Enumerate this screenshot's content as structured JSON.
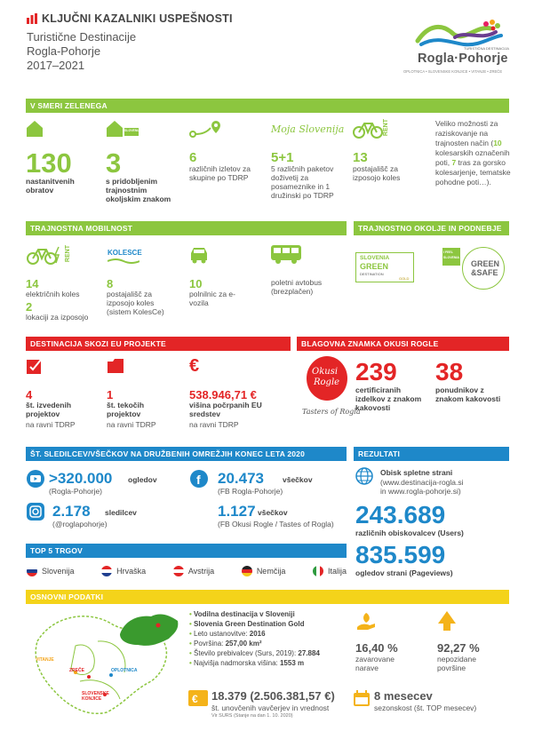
{
  "header": {
    "title": "KLJUČNI KAZALNIKI USPEŠNOSTI",
    "line1": "Turistične Destinacije",
    "line2": "Rogla-Pohorje",
    "line3": "2017–2021"
  },
  "logo": {
    "top": "TURISTIČNA DESTINACIJA",
    "name": "Rogla·Pohorje",
    "sub": "OPLOTNICA • SLOVENSKE KONJICE • VITANJE • ZREČE"
  },
  "green": {
    "bar": "V SMERI ZELENEGA",
    "moja": "Moja Slovenija",
    "rent": "RENT",
    "slovenia_green": "SLOVENIA GREEN",
    "s1_num": "130",
    "s1_label": "nastanitvenih obratov",
    "s2_num": "3",
    "s2_label": "s pridobljenim trajnostnim okoljskim znakom",
    "s3_num": "6",
    "s3_label": "različnih izletov za skupine po TDRP",
    "s4_num": "5+1",
    "s4_label": "5 različnih paketov doživetij za posameznike in 1 družinski po TDRP",
    "s5_num": "13",
    "s5_label": "postajališč za izposojo koles",
    "note_a": "Veliko možnosti za raziskovanje na trajnosten način (",
    "note_b": "10",
    "note_c": " kolesarskih označenih poti, ",
    "note_d": "7",
    "note_e": " tras za gorsko kolesarjenje, tematske pohodne poti…)."
  },
  "mobility": {
    "bar": "TRAJNOSTNA MOBILNOST",
    "rent": "RENT",
    "kolesce": "KOLESCE",
    "m1_num": "14",
    "m1_label": "električnih koles",
    "m1b_num": "2",
    "m1b_label": "lokaciji za izposojo",
    "m2_num": "8",
    "m2_label": "postajališč za izposojo koles (sistem KolesCe)",
    "m3_num": "10",
    "m3_label": "polnilnic za e-vozila",
    "m4_label": "poletni avtobus (brezplačen)"
  },
  "env": {
    "bar": "TRAJNOSTNO OKOLJE IN PODNEBJE",
    "badge1a": "SLOVENIA",
    "badge1b": "GREEN",
    "badge1c": "DESTINATION",
    "badge1d": "GOLD",
    "badge2a": "I FEEL",
    "badge2b": "SLOVENIA",
    "badge3a": "GREEN",
    "badge3b": "&SAFE"
  },
  "eu": {
    "bar": "DESTINACIJA SKOZI EU PROJEKTE",
    "e1_num": "4",
    "e1_label": "št. izvedenih projektov",
    "e1_sub": "na ravni TDRP",
    "e2_num": "1",
    "e2_label": "št. tekočih projektov",
    "e2_sub": "na ravni TDRP",
    "e3_num": "538.946,71 €",
    "e3_label": "višina počrpanih EU sredstev",
    "e3_sub": "na ravni TDRP"
  },
  "brand": {
    "bar": "BLAGOVNA ZNAMKA OKUSI ROGLE",
    "logo_a": "Okusi",
    "logo_b": "Rogle",
    "tasters": "Tasters of Rogla",
    "b1_num": "239",
    "b1_label": "certificiranih izdelkov z znakom kakovosti",
    "b2_num": "38",
    "b2_label": "ponudnikov z znakom kakovosti"
  },
  "social": {
    "bar": "ŠT. SLEDILCEV/VŠEČKOV NA DRUŽBENIH OMREŽJIH KONEC LETA 2020",
    "yt_num": ">320.000",
    "yt_unit": "ogledov",
    "yt_sub": "(Rogla-Pohorje)",
    "fb1_num": "20.473",
    "fb1_unit": "všečkov",
    "fb1_sub": "(FB Rogla-Pohorje)",
    "ig_num": "2.178",
    "ig_unit": "sledilcev",
    "ig_sub": "(@roglapohorje)",
    "fb2_num": "1.127",
    "fb2_unit": "všečkov",
    "fb2_sub": "(FB Okusi Rogle / Tastes of Rogla)"
  },
  "results": {
    "bar": "REZULTATI",
    "web_title": "Obisk spletne strani",
    "web_sub1": "(www.destinacija-rogla.si",
    "web_sub2": "in www.rogla-pohorje.si)",
    "users_num": "243.689",
    "users_label": "različnih obiskovalcev (Users)",
    "pv_num": "835.599",
    "pv_label": "ogledov strani (Pageviews)"
  },
  "markets": {
    "bar": "TOP 5 TRGOV",
    "items": [
      "Slovenija",
      "Hrvaška",
      "Avstrija",
      "Nemčija",
      "Italija"
    ]
  },
  "basic": {
    "bar": "OSNOVNI PODATKI",
    "places": {
      "vitanje": "VITANJE",
      "zrece": "ZREČE",
      "oplotnica": "OPLOTNICA",
      "konjice1": "SLOVENSKE",
      "konjice2": "KONJICE"
    },
    "list": [
      {
        "a": "Vodilna destinacija v Sloveniji",
        "b": ""
      },
      {
        "a": "Slovenia Green Destination Gold",
        "b": ""
      },
      {
        "a": "Leto ustanovitve: ",
        "b": "2016"
      },
      {
        "a": "Površina: ",
        "b": "257,00 km²"
      },
      {
        "a": "Število prebivalcev (Surs, 2019): ",
        "b": "27.884"
      },
      {
        "a": "Najvišja nadmorska višina: ",
        "b": "1553 m"
      }
    ],
    "p1_num": "16,40 %",
    "p1_label": "zavarovane narave",
    "p2_num": "92,27 %",
    "p2_label": "nepozidane površine",
    "v_num": "18.379 (2.506.381,57 €)",
    "v_label": "št. unovčenih vavčerjev in vrednost",
    "v_src": "Vir SURS (Stanje na dan 1. 10. 2020)",
    "s_num": "8 mesecev",
    "s_label": "sezonskost (št. TOP mesecev)"
  },
  "colors": {
    "green": "#8cc63f",
    "red": "#e32526",
    "blue": "#1e88c9",
    "yellow": "#f4d31a"
  }
}
